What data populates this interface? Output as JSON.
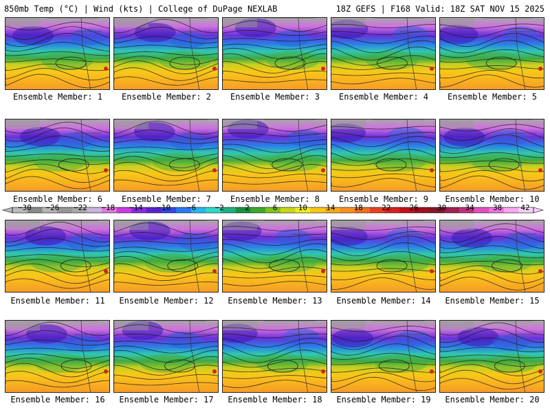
{
  "header": {
    "title_left": "850mb Temp (°C) | Wind (kts) | College of DuPage NEXLAB",
    "title_right": "18Z GEFS | F168 Valid: 18Z SAT NOV 15 2025"
  },
  "panels": [
    {
      "label": "Ensemble Member: 1"
    },
    {
      "label": "Ensemble Member: 2"
    },
    {
      "label": "Ensemble Member: 3"
    },
    {
      "label": "Ensemble Member: 4"
    },
    {
      "label": "Ensemble Member: 5"
    },
    {
      "label": "Ensemble Member: 6"
    },
    {
      "label": "Ensemble Member: 7"
    },
    {
      "label": "Ensemble Member: 8"
    },
    {
      "label": "Ensemble Member: 9"
    },
    {
      "label": "Ensemble Member: 10"
    },
    {
      "label": "Ensemble Member: 11"
    },
    {
      "label": "Ensemble Member: 12"
    },
    {
      "label": "Ensemble Member: 13"
    },
    {
      "label": "Ensemble Member: 14"
    },
    {
      "label": "Ensemble Member: 15"
    },
    {
      "label": "Ensemble Member: 16"
    },
    {
      "label": "Ensemble Member: 17"
    },
    {
      "label": "Ensemble Member: 18"
    },
    {
      "label": "Ensemble Member: 19"
    },
    {
      "label": "Ensemble Member: 20"
    }
  ],
  "colorbar": {
    "tick_labels": [
      "−30",
      "−26",
      "−22",
      "−18",
      "−14",
      "−10",
      "−6",
      "−2",
      "2",
      "6",
      "10",
      "14",
      "18",
      "22",
      "26",
      "30",
      "34",
      "38",
      "42"
    ],
    "colors": [
      "#bbbbbb",
      "#8a8a8a",
      "#b4b4b4",
      "#969696",
      "#a8a8a8",
      "#c8b4dc",
      "#e27ae2",
      "#c93be0",
      "#8a2be0",
      "#5a20d0",
      "#3048e0",
      "#2a7af0",
      "#28b8f0",
      "#30d8c8",
      "#20b080",
      "#189040",
      "#40a830",
      "#80c020",
      "#c8d818",
      "#f0f018",
      "#f8c818",
      "#f8a818",
      "#f89020",
      "#f07020",
      "#e84020",
      "#d82020",
      "#c01018",
      "#a01020",
      "#801828",
      "#a02050",
      "#c03080",
      "#e050c0",
      "#f070e0",
      "#f8a8f0",
      "#f8d0f8"
    ]
  }
}
